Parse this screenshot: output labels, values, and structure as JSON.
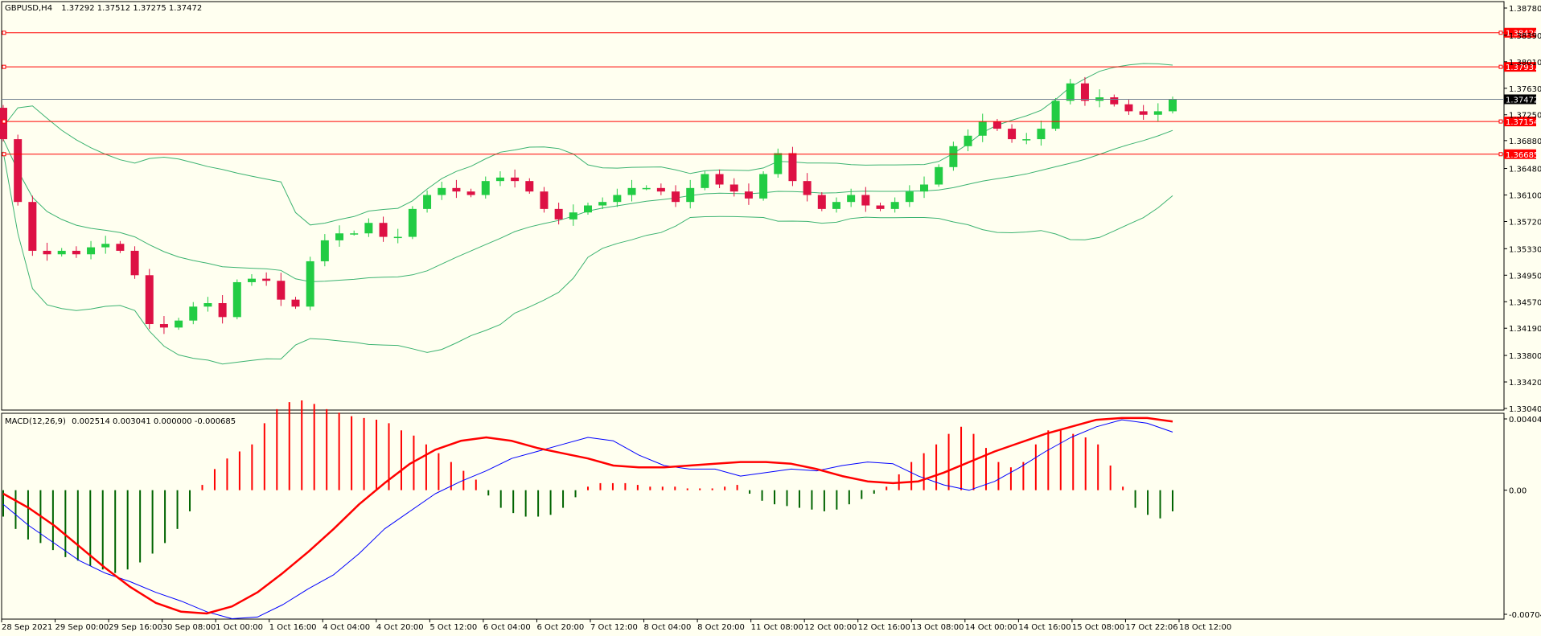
{
  "main_panel": {
    "header": {
      "symbol": "GBPUSD,H4",
      "ohlc": "1.37292 1.37512 1.37275 1.37472"
    }
  },
  "macd_panel": {
    "header": {
      "label": "MACD(12,26,9)",
      "values": "0.002514 0.003041 0.000000 -0.000685"
    }
  },
  "colors": {
    "background": "#fffff0",
    "bull": "#22cc44",
    "bear": "#dd1144",
    "bollinger": "#3cb371",
    "level_line": "#ff0000",
    "current_price_line": "#708090",
    "macd_line": "#0000ff",
    "signal_line": "#ff0000"
  },
  "chart_data": [
    {
      "type": "candlestick",
      "symbol": "GBPUSD",
      "timeframe": "H4",
      "ylim": [
        1.3304,
        1.3878
      ],
      "y_ticks": [
        "1.38780",
        "1.38390",
        "1.38010",
        "1.37630",
        "1.37250",
        "1.36880",
        "1.36480",
        "1.36100",
        "1.35720",
        "1.35330",
        "1.34950",
        "1.34570",
        "1.34190",
        "1.33800",
        "1.33420",
        "1.33040"
      ],
      "x_ticks": [
        "28 Sep 2021",
        "29 Sep 00:00",
        "29 Sep 16:00",
        "30 Sep 08:00",
        "1 Oct 00:00",
        "1 Oct 16:00",
        "4 Oct 04:00",
        "4 Oct 20:00",
        "5 Oct 12:00",
        "6 Oct 04:00",
        "6 Oct 20:00",
        "7 Oct 12:00",
        "8 Oct 04:00",
        "8 Oct 20:00",
        "11 Oct 08:00",
        "12 Oct 00:00",
        "12 Oct 16:00",
        "13 Oct 08:00",
        "14 Oct 00:00",
        "14 Oct 16:00",
        "15 Oct 08:00",
        "17 Oct 22:06",
        "18 Oct 12:00"
      ],
      "close_series": [
        1.369,
        1.36,
        1.353,
        1.3525,
        1.353,
        1.3525,
        1.3535,
        1.354,
        1.353,
        1.3495,
        1.3425,
        1.342,
        1.343,
        1.345,
        1.3455,
        1.3435,
        1.3485,
        1.349,
        1.3487,
        1.346,
        1.345,
        1.3515,
        1.3545,
        1.3555,
        1.3555,
        1.357,
        1.355,
        1.355,
        1.359,
        1.361,
        1.362,
        1.3615,
        1.361,
        1.363,
        1.3635,
        1.363,
        1.3615,
        1.359,
        1.3575,
        1.3585,
        1.3595,
        1.36,
        1.361,
        1.362,
        1.362,
        1.3615,
        1.36,
        1.362,
        1.364,
        1.3625,
        1.3615,
        1.3605,
        1.364,
        1.367,
        1.363,
        1.361,
        1.359,
        1.36,
        1.361,
        1.3595,
        1.359,
        1.36,
        1.3615,
        1.3625,
        1.365,
        1.368,
        1.3695,
        1.3715,
        1.3705,
        1.369,
        1.369,
        1.3705,
        1.3745,
        1.377,
        1.3745,
        1.375,
        1.374,
        1.373,
        1.3725,
        1.373,
        1.3747
      ],
      "current_price": 1.37472,
      "levels": [
        1.38426,
        1.37937,
        1.37154,
        1.36685
      ]
    },
    {
      "type": "macd",
      "params": "12,26,9",
      "ylim": [
        -0.007047,
        0.004048
      ],
      "y_ticks": [
        "0.004048",
        "0.00",
        "-0.007047"
      ],
      "histogram": [
        -0.0015,
        -0.0022,
        -0.0028,
        -0.003,
        -0.0034,
        -0.0038,
        -0.004,
        -0.0043,
        -0.0045,
        -0.0047,
        -0.0045,
        -0.0041,
        -0.0036,
        -0.003,
        -0.0022,
        -0.0012,
        0.0003,
        0.0012,
        0.0018,
        0.0022,
        0.0026,
        0.0038,
        0.0046,
        0.005,
        0.0051,
        0.0049,
        0.0046,
        0.0044,
        0.0042,
        0.0041,
        0.004,
        0.0038,
        0.0034,
        0.0031,
        0.0026,
        0.0021,
        0.0016,
        0.0011,
        0.0006,
        -0.0003,
        -0.001,
        -0.0013,
        -0.0015,
        -0.0015,
        -0.0014,
        -0.001,
        -0.0004,
        0.0002,
        0.0004,
        0.0004,
        0.0004,
        0.0003,
        0.0002,
        0.0002,
        0.0002,
        0.0001,
        0.0001,
        0.0001,
        0.0002,
        0.0003,
        -0.0002,
        -0.0006,
        -0.0008,
        -0.0009,
        -0.001,
        -0.0011,
        -0.0012,
        -0.0011,
        -0.0008,
        -0.0005,
        -0.0002,
        0.0002,
        0.0009,
        0.0016,
        0.0021,
        0.0026,
        0.0032,
        0.0036,
        0.0032,
        0.0024,
        0.0016,
        0.0013,
        0.0016,
        0.0026,
        0.0034,
        0.0034,
        0.0032,
        0.003,
        0.0026,
        0.0014,
        0.0002,
        -0.001,
        -0.0014,
        -0.0016,
        -0.0012
      ],
      "macd": [
        -0.0008,
        -0.002,
        -0.003,
        -0.004,
        -0.0047,
        -0.0052,
        -0.0058,
        -0.0063,
        -0.0069,
        -0.0073,
        -0.0072,
        -0.0065,
        -0.0056,
        -0.0048,
        -0.0036,
        -0.0022,
        -0.0012,
        -0.0002,
        0.0005,
        0.0011,
        0.0018,
        0.0022,
        0.0026,
        0.003,
        0.0028,
        0.002,
        0.0014,
        0.0012,
        0.0012,
        0.0008,
        0.001,
        0.0012,
        0.0011,
        0.0014,
        0.0016,
        0.0015,
        0.0008,
        0.0003,
        0.0,
        0.0005,
        0.0013,
        0.0022,
        0.003,
        0.0036,
        0.004,
        0.0038,
        0.0033
      ],
      "signal": [
        -0.0002,
        -0.001,
        -0.002,
        -0.0032,
        -0.0044,
        -0.0055,
        -0.0064,
        -0.0069,
        -0.007,
        -0.0066,
        -0.0058,
        -0.0047,
        -0.0035,
        -0.0022,
        -0.0008,
        0.0004,
        0.0015,
        0.0023,
        0.0028,
        0.003,
        0.0028,
        0.0024,
        0.0021,
        0.0018,
        0.0014,
        0.0013,
        0.0013,
        0.0014,
        0.0015,
        0.0016,
        0.0016,
        0.0015,
        0.0012,
        0.0008,
        0.0005,
        0.0004,
        0.0005,
        0.001,
        0.0016,
        0.0022,
        0.0027,
        0.0032,
        0.0036,
        0.004,
        0.0041,
        0.0041,
        0.0039
      ]
    }
  ]
}
